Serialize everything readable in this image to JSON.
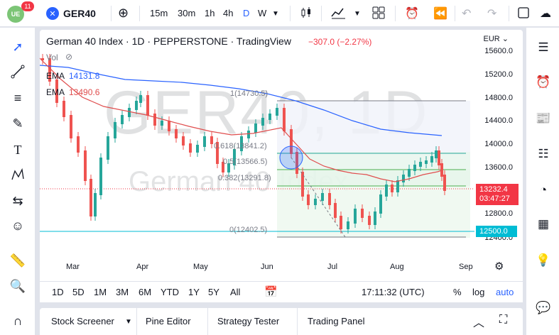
{
  "topbar": {
    "avatar_text": "UE",
    "notifications": "11",
    "symbol": "GER40",
    "intervals": [
      "15m",
      "30m",
      "1h",
      "4h",
      "D",
      "W"
    ],
    "active_interval": "D"
  },
  "legend": {
    "title": "German 40 Index · 1D · PEPPERSTONE · TradingView",
    "change": "−307.0 (−2.27%)",
    "vol": "Vol",
    "ema1_label": "EMA",
    "ema1_value": "14131.8",
    "ema2_label": "EMA",
    "ema2_value": "13490.6"
  },
  "watermark": {
    "big": "GER40, 1D",
    "small": "German 40 Index"
  },
  "currency": "EUR",
  "yaxis": [
    "15600.0",
    "15200.0",
    "14800.0",
    "14400.0",
    "14000.0",
    "13600.0",
    "12800.0",
    "12400.0"
  ],
  "xaxis": [
    "Mar",
    "Apr",
    "May",
    "Jun",
    "Jul",
    "Aug",
    "Sep"
  ],
  "price_tag": {
    "price": "13232.4",
    "countdown": "03:47:27"
  },
  "support_tag": "12500.0",
  "fib": {
    "l1": "1(14730.5)",
    "l0618": "0.618(13841.2)",
    "l05": "0.5(13566.5)",
    "l0382": "0.382(13291.8)",
    "l0": "0(12402.5)"
  },
  "ranges": [
    "1D",
    "5D",
    "1M",
    "3M",
    "6M",
    "YTD",
    "1Y",
    "5Y",
    "All"
  ],
  "time": "17:11:32 (UTC)",
  "scale_opts": [
    "%",
    "log",
    "auto"
  ],
  "bottom_tabs": [
    "Stock Screener",
    "Pine Editor",
    "Strategy Tester",
    "Trading Panel"
  ],
  "colors": {
    "up": "#26a69a",
    "down": "#ef5350",
    "ema_blue": "#2962ff",
    "ema_red": "#e04e4e",
    "accent": "#2962ff"
  },
  "chart_data": {
    "type": "candlestick",
    "x_range": [
      "Feb",
      "Sep"
    ],
    "y_range": [
      12400,
      15600
    ],
    "ema_slow_last": 14131.8,
    "ema_fast_last": 13490.6,
    "last_close": 13232.4
  }
}
